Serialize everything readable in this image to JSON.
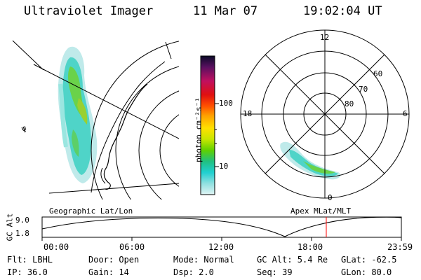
{
  "header": {
    "instrument": "Ultraviolet Imager",
    "date": "11 Mar 07",
    "time": "19:02:04 UT"
  },
  "left_panel": {
    "caption": "Geographic Lat/Lon",
    "lon_marker": "Ψ"
  },
  "colorbar": {
    "unit_label": "photon cm⁻²s⁻¹",
    "ticks": [
      "100",
      "10"
    ],
    "colors": [
      "#0a0a28",
      "#5a1060",
      "#c01060",
      "#e01010",
      "#ff5000",
      "#ffa000",
      "#ffe000",
      "#c8e600",
      "#60d000",
      "#20c080",
      "#20d0d0",
      "#90e0e0",
      "#e0f4f4"
    ]
  },
  "right_panel": {
    "caption": "Apex MLat/MLT",
    "mlt_labels": {
      "top": "12",
      "bottom": "0",
      "left": "18",
      "right": "6"
    },
    "lat_labels": [
      "60",
      "70",
      "80"
    ]
  },
  "altitude_plot": {
    "ylabel": "GC Alt",
    "y_ticks": [
      "9.0",
      "1.8"
    ],
    "x_ticks": [
      "00:00",
      "06:00",
      "12:00",
      "18:00",
      "23:59"
    ],
    "current_time_marker_color": "#ff0000"
  },
  "info": {
    "filter": "Flt: LBHL",
    "ip": "IP: 36.0",
    "door": "Door: Open",
    "gain": "Gain: 14",
    "mode": "Mode: Normal",
    "dsp": "Dsp:    2.0",
    "gc_alt": "GC Alt: 5.4 Re",
    "seq": "Seq: 39",
    "glat": "GLat: -62.5",
    "glon": "GLon:  80.0"
  }
}
